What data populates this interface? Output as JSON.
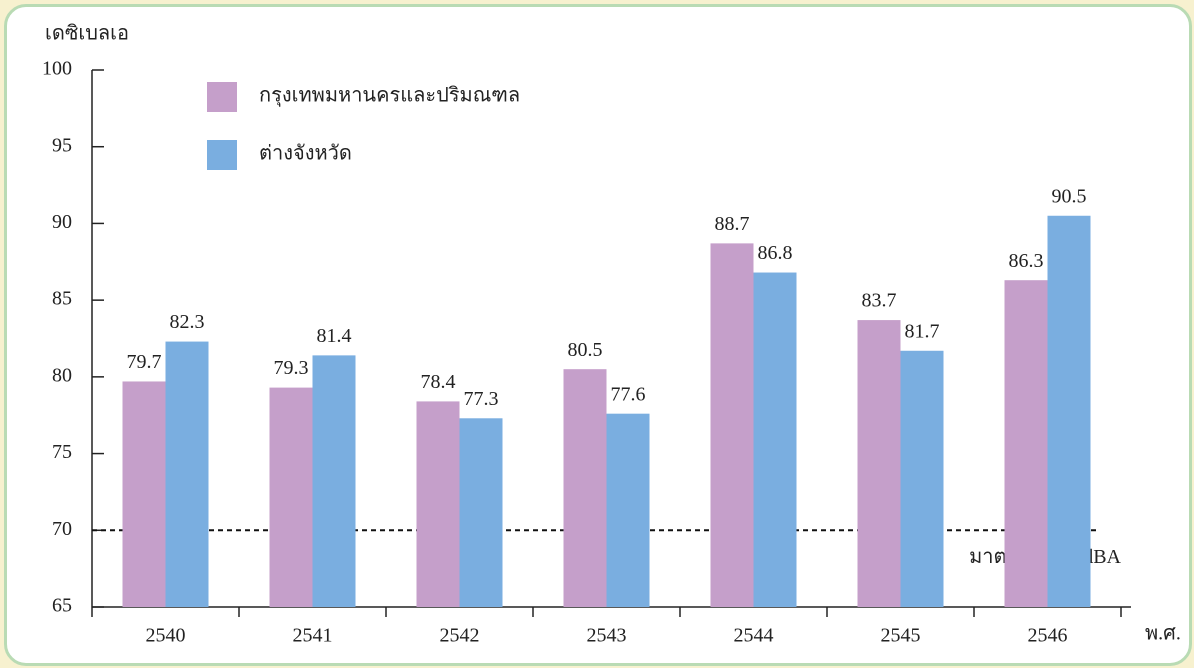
{
  "chart_data": {
    "type": "bar",
    "y_label": "เดซิเบลเอ",
    "x_label": "พ.ศ.",
    "categories": [
      "2540",
      "2541",
      "2542",
      "2543",
      "2544",
      "2545",
      "2546"
    ],
    "series": [
      {
        "name": "กรุงเทพมหานครและปริมณฑล",
        "color": "#c59fca",
        "values": [
          79.7,
          79.3,
          78.4,
          80.5,
          88.7,
          83.7,
          86.3
        ]
      },
      {
        "name": "ต่างจังหวัด",
        "color": "#7aaee0",
        "values": [
          82.3,
          81.4,
          77.3,
          77.6,
          86.8,
          81.7,
          90.5
        ]
      }
    ],
    "ylim": [
      65,
      100
    ],
    "yticks": [
      65,
      70,
      75,
      80,
      85,
      90,
      95,
      100
    ],
    "reference_line": {
      "value": 70,
      "label": "มาตรฐาน 70 dBA"
    },
    "legend": "upper left"
  }
}
